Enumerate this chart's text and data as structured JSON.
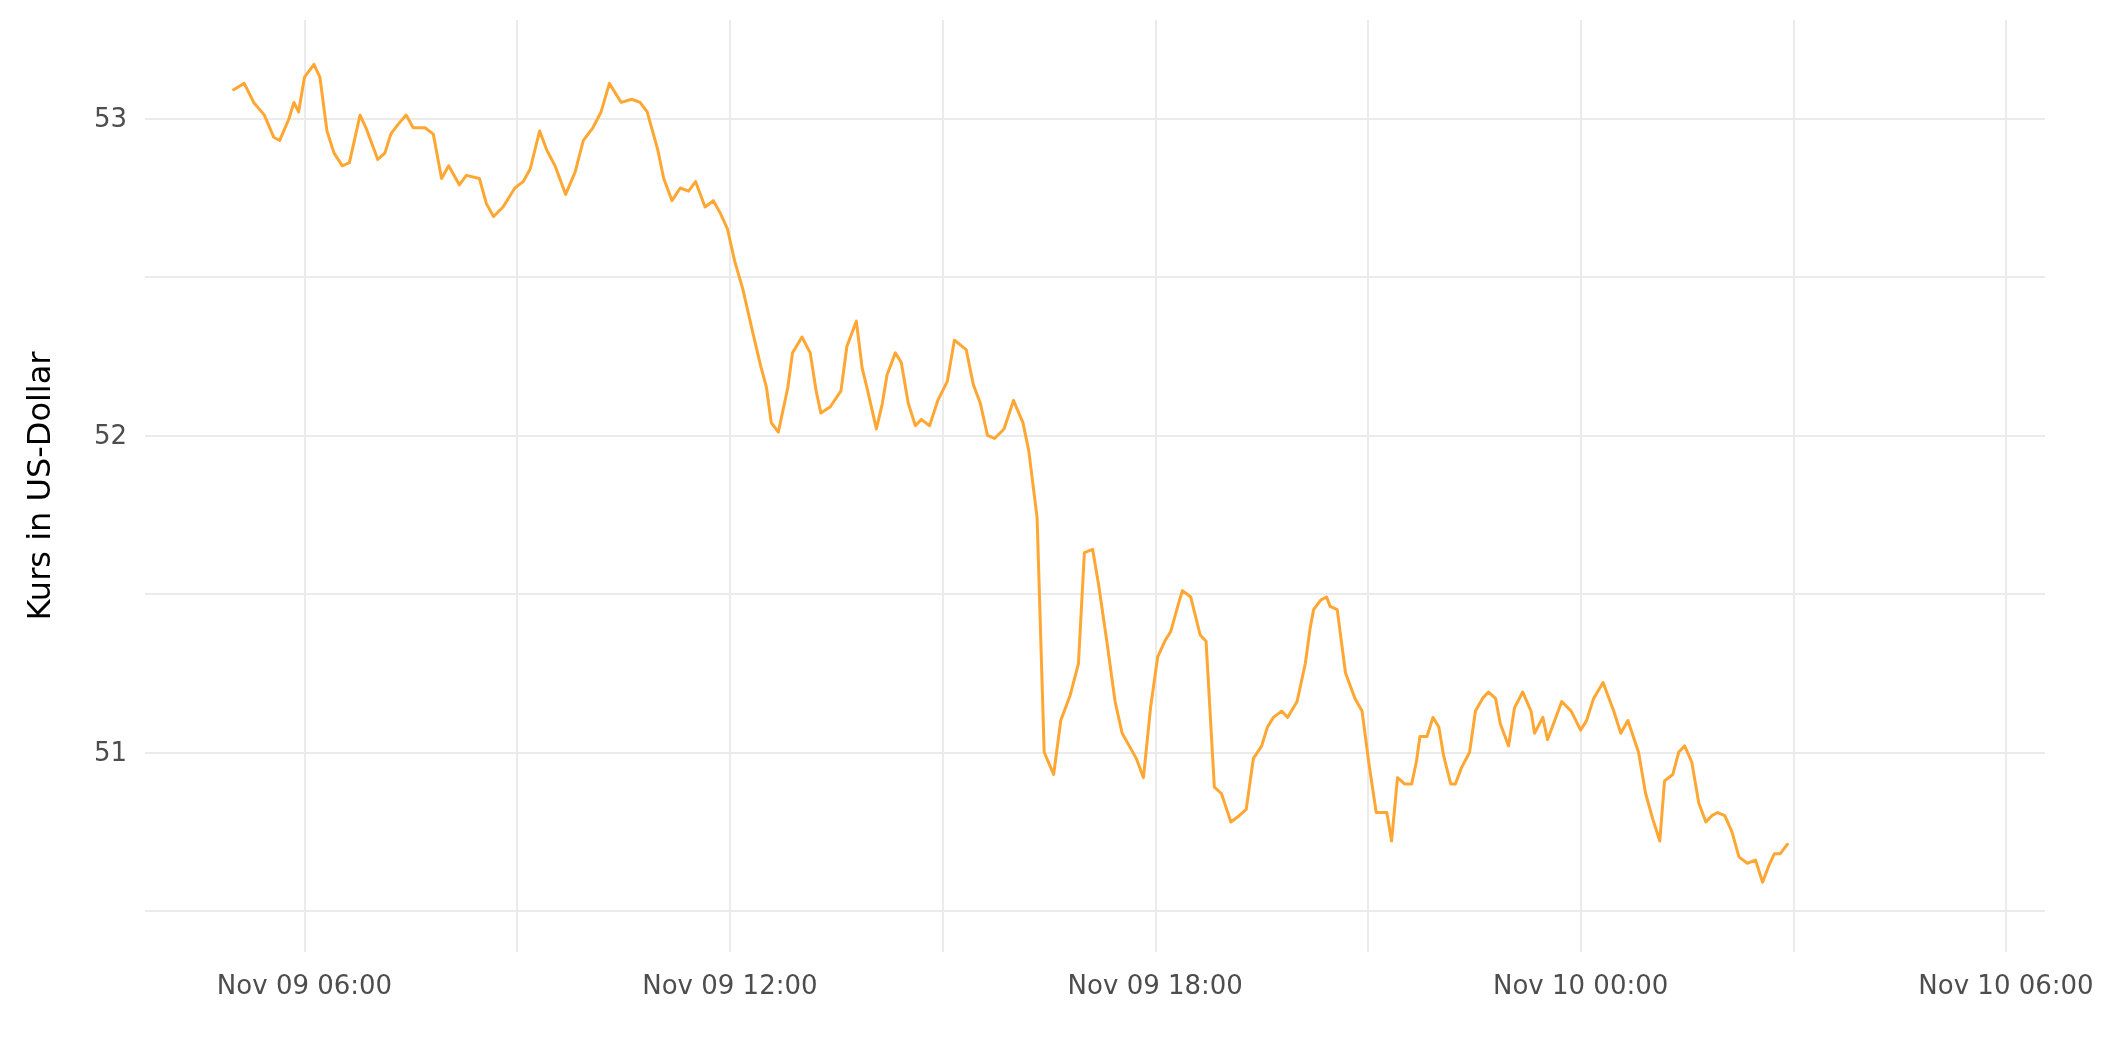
{
  "chart_data": {
    "type": "line",
    "ylabel": "Kurs in US-Dollar",
    "x": [
      "--11-09T05:00",
      "--11-09T05:09",
      "--11-09T05:17",
      "--11-09T05:26",
      "--11-09T05:34",
      "--11-09T05:39",
      "--11-09T05:47",
      "--11-09T05:51",
      "--11-09T05:55",
      "--11-09T06:00",
      "--11-09T06:08",
      "--11-09T06:13",
      "--11-09T06:19",
      "--11-09T06:25",
      "--11-09T06:32",
      "--11-09T06:38",
      "--11-09T06:47",
      "--11-09T06:52",
      "--11-09T07:02",
      "--11-09T07:08",
      "--11-09T07:13",
      "--11-09T07:19",
      "--11-09T07:26",
      "--11-09T07:32",
      "--11-09T07:42",
      "--11-09T07:49",
      "--11-09T07:56",
      "--11-09T08:02",
      "--11-09T08:11",
      "--11-09T08:17",
      "--11-09T08:28",
      "--11-09T08:34",
      "--11-09T08:40",
      "--11-09T08:48",
      "--11-09T08:58",
      "--11-09T09:05",
      "--11-09T09:11",
      "--11-09T09:19",
      "--11-09T09:25",
      "--11-09T09:32",
      "--11-09T09:41",
      "--11-09T09:49",
      "--11-09T09:56",
      "--11-09T10:04",
      "--11-09T10:11",
      "--11-09T10:18",
      "--11-09T10:28",
      "--11-09T10:37",
      "--11-09T10:44",
      "--11-09T10:50",
      "--11-09T10:59",
      "--11-09T11:04",
      "--11-09T11:11",
      "--11-09T11:18",
      "--11-09T11:25",
      "--11-09T11:31",
      "--11-09T11:39",
      "--11-09T11:46",
      "--11-09T11:52",
      "--11-09T11:58",
      "--11-09T12:04",
      "--11-09T12:11",
      "--11-09T12:19",
      "--11-09T12:26",
      "--11-09T12:31",
      "--11-09T12:35",
      "--11-09T12:41",
      "--11-09T12:49",
      "--11-09T12:53",
      "--11-09T13:01",
      "--11-09T13:08",
      "--11-09T13:13",
      "--11-09T13:17",
      "--11-09T13:25",
      "--11-09T13:34",
      "--11-09T13:39",
      "--11-09T13:47",
      "--11-09T13:52",
      "--11-09T13:56",
      "--11-09T14:04",
      "--11-09T14:09",
      "--11-09T14:13",
      "--11-09T14:20",
      "--11-09T14:25",
      "--11-09T14:31",
      "--11-09T14:37",
      "--11-09T14:42",
      "--11-09T14:49",
      "--11-09T14:56",
      "--11-09T15:04",
      "--11-09T15:10",
      "--11-09T15:20",
      "--11-09T15:26",
      "--11-09T15:32",
      "--11-09T15:38",
      "--11-09T15:44",
      "--11-09T15:52",
      "--11-09T16:00",
      "--11-09T16:08",
      "--11-09T16:13",
      "--11-09T16:20",
      "--11-09T16:26",
      "--11-09T16:34",
      "--11-09T16:40",
      "--11-09T16:48",
      "--11-09T16:55",
      "--11-09T17:00",
      "--11-09T17:07",
      "--11-09T17:12",
      "--11-09T17:19",
      "--11-09T17:26",
      "--11-09T17:32",
      "--11-09T17:44",
      "--11-09T17:50",
      "--11-09T17:56",
      "--11-09T18:02",
      "--11-09T18:08",
      "--11-09T18:13",
      "--11-09T18:19",
      "--11-09T18:23",
      "--11-09T18:30",
      "--11-09T18:38",
      "--11-09T18:43",
      "--11-09T18:50",
      "--11-09T18:56",
      "--11-09T19:04",
      "--11-09T19:11",
      "--11-09T19:17",
      "--11-09T19:23",
      "--11-09T19:30",
      "--11-09T19:35",
      "--11-09T19:40",
      "--11-09T19:47",
      "--11-09T19:52",
      "--11-09T20:00",
      "--11-09T20:07",
      "--11-09T20:11",
      "--11-09T20:14",
      "--11-09T20:20",
      "--11-09T20:25",
      "--11-09T20:28",
      "--11-09T20:34",
      "--11-09T20:41",
      "--11-09T20:49",
      "--11-09T20:55",
      "--11-09T21:01",
      "--11-09T21:07",
      "--11-09T21:16",
      "--11-09T21:20",
      "--11-09T21:25",
      "--11-09T21:31",
      "--11-09T21:37",
      "--11-09T21:41",
      "--11-09T21:44",
      "--11-09T21:50",
      "--11-09T21:55",
      "--11-09T22:00",
      "--11-09T22:04",
      "--11-09T22:10",
      "--11-09T22:14",
      "--11-09T22:19",
      "--11-09T22:26",
      "--11-09T22:31",
      "--11-09T22:37",
      "--11-09T22:42",
      "--11-09T22:48",
      "--11-09T22:52",
      "--11-09T22:59",
      "--11-09T23:04",
      "--11-09T23:11",
      "--11-09T23:18",
      "--11-09T23:21",
      "--11-09T23:28",
      "--11-09T23:32",
      "--11-09T23:39",
      "--11-09T23:44",
      "--11-09T23:52",
      "--11-10T00:00",
      "--11-10T00:05",
      "--11-10T00:11",
      "--11-10T00:19",
      "--11-10T00:28",
      "--11-10T00:34",
      "--11-10T00:40",
      "--11-10T00:49",
      "--11-10T00:55",
      "--11-10T01:01",
      "--11-10T01:07",
      "--11-10T01:11",
      "--11-10T01:18",
      "--11-10T01:23",
      "--11-10T01:28",
      "--11-10T01:34",
      "--11-10T01:40",
      "--11-10T01:46",
      "--11-10T01:51",
      "--11-10T01:56",
      "--11-10T02:02",
      "--11-10T02:08",
      "--11-10T02:14",
      "--11-10T02:21",
      "--11-10T02:28",
      "--11-10T02:34",
      "--11-10T02:39",
      "--11-10T02:44",
      "--11-10T02:49",
      "--11-10T02:55"
    ],
    "series": [
      {
        "color": "#ffa633",
        "values": [
          53.09,
          53.11,
          53.05,
          53.01,
          52.94,
          52.93,
          53.0,
          53.05,
          53.02,
          53.13,
          53.17,
          53.13,
          52.96,
          52.89,
          52.85,
          52.86,
          53.01,
          52.97,
          52.87,
          52.89,
          52.95,
          52.98,
          53.01,
          52.97,
          52.97,
          52.95,
          52.81,
          52.85,
          52.79,
          52.82,
          52.81,
          52.73,
          52.69,
          52.72,
          52.78,
          52.8,
          52.84,
          52.96,
          52.9,
          52.85,
          52.76,
          52.83,
          52.93,
          52.97,
          53.02,
          53.11,
          53.05,
          53.06,
          53.05,
          53.02,
          52.9,
          52.81,
          52.74,
          52.78,
          52.77,
          52.8,
          52.72,
          52.74,
          52.7,
          52.65,
          52.55,
          52.46,
          52.33,
          52.22,
          52.15,
          52.04,
          52.01,
          52.15,
          52.26,
          52.31,
          52.26,
          52.14,
          52.07,
          52.09,
          52.14,
          52.28,
          52.36,
          52.21,
          52.15,
          52.02,
          52.1,
          52.19,
          52.26,
          52.23,
          52.1,
          52.03,
          52.05,
          52.03,
          52.11,
          52.17,
          52.3,
          52.27,
          52.16,
          52.1,
          52.0,
          51.99,
          52.02,
          52.11,
          52.04,
          51.95,
          51.74,
          51.0,
          50.93,
          51.1,
          51.18,
          51.28,
          51.63,
          51.64,
          51.53,
          51.35,
          51.16,
          51.06,
          50.98,
          50.92,
          51.14,
          51.3,
          51.35,
          51.38,
          51.46,
          51.51,
          51.49,
          51.37,
          51.35,
          50.89,
          50.87,
          50.78,
          50.8,
          50.82,
          50.98,
          51.02,
          51.08,
          51.11,
          51.13,
          51.11,
          51.16,
          51.28,
          51.39,
          51.45,
          51.48,
          51.49,
          51.46,
          51.45,
          51.25,
          51.17,
          51.13,
          50.96,
          50.81,
          50.81,
          50.72,
          50.92,
          50.9,
          50.9,
          50.97,
          51.05,
          51.05,
          51.11,
          51.08,
          50.99,
          50.9,
          50.9,
          50.95,
          51.0,
          51.13,
          51.17,
          51.19,
          51.17,
          51.09,
          51.02,
          51.14,
          51.19,
          51.13,
          51.06,
          51.11,
          51.04,
          51.11,
          51.16,
          51.13,
          51.07,
          51.1,
          51.17,
          51.22,
          51.13,
          51.06,
          51.1,
          51.0,
          50.87,
          50.79,
          50.72,
          50.91,
          50.93,
          51.0,
          51.02,
          50.97,
          50.84,
          50.78,
          50.8,
          50.81,
          50.8,
          50.75,
          50.67,
          50.65,
          50.66,
          50.59,
          50.64,
          50.68,
          50.68,
          50.71
        ]
      }
    ],
    "xlim": [
      "--11-09T03:45",
      "--11-10T06:33"
    ],
    "xticks": [
      {
        "value": "--11-09T06:00",
        "label": "Nov 09 06:00"
      },
      {
        "value": "--11-09T09:00",
        "label": null
      },
      {
        "value": "--11-09T12:00",
        "label": "Nov 09 12:00"
      },
      {
        "value": "--11-09T15:00",
        "label": null
      },
      {
        "value": "--11-09T18:00",
        "label": "Nov 09 18:00"
      },
      {
        "value": "--11-09T21:00",
        "label": null
      },
      {
        "value": "--11-10T00:00",
        "label": "Nov 10 00:00"
      },
      {
        "value": "--11-10T03:00",
        "label": null
      },
      {
        "value": "--11-10T06:00",
        "label": "Nov 10 06:00"
      }
    ],
    "ylim": [
      50.37,
      53.31
    ],
    "yticks": [
      {
        "value": 50.5,
        "label": null
      },
      51,
      {
        "value": 51.5,
        "label": null
      },
      52,
      {
        "value": 52.5,
        "label": null
      },
      53
    ],
    "grid": true,
    "marker": "none",
    "line_style": "solid"
  }
}
